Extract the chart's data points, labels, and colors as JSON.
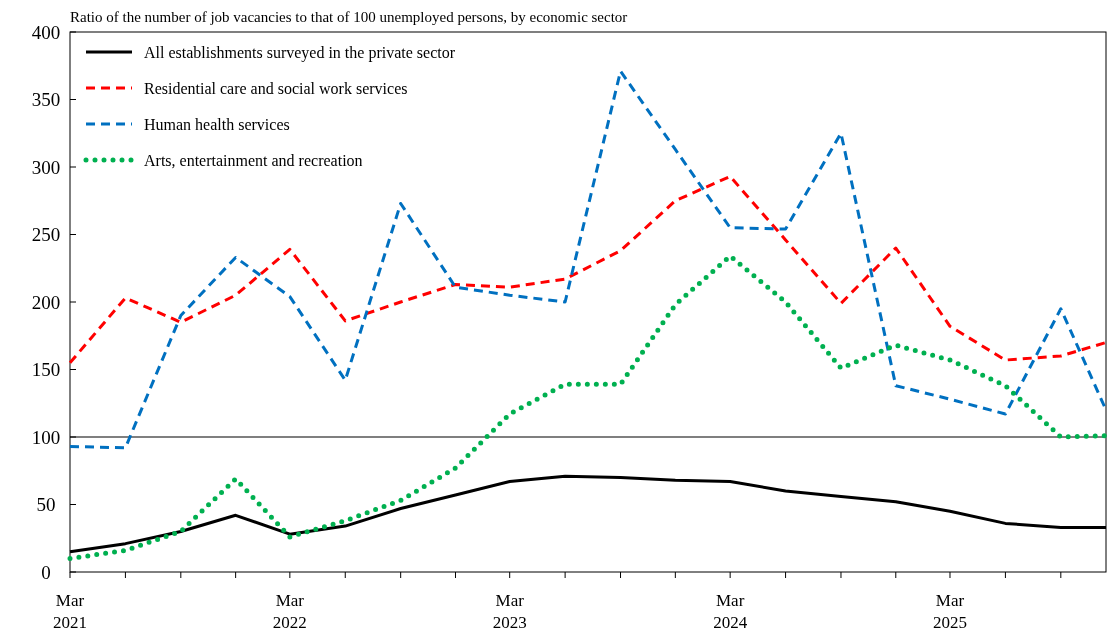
{
  "chart_data": {
    "type": "line",
    "title": "Ratio of the number of job vacancies to that of 100 unemployed persons, by economic sector",
    "x": [
      "2021-03",
      "2021-06",
      "2021-09",
      "2021-12",
      "2022-03",
      "2022-06",
      "2022-09",
      "2022-12",
      "2023-03",
      "2023-06",
      "2023-09",
      "2023-12",
      "2024-03",
      "2024-06",
      "2024-09",
      "2024-12",
      "2025-03",
      "2025-06",
      "2025-09",
      "2025-11-15"
    ],
    "series": [
      {
        "name": "All establishments surveyed in the private sector",
        "color": "#000000",
        "line_style": "solid",
        "values": [
          15,
          21,
          30,
          42,
          28,
          34,
          47,
          57,
          67,
          71,
          70,
          68,
          67,
          60,
          56,
          52,
          45,
          36,
          33,
          33
        ]
      },
      {
        "name": "Residential care and social work services",
        "color": "#ff0000",
        "line_style": "dashed",
        "values": [
          155,
          203,
          185,
          205,
          239,
          186,
          200,
          213,
          211,
          217,
          238,
          275,
          293,
          246,
          199,
          240,
          182,
          157,
          160,
          170
        ]
      },
      {
        "name": "Human health services",
        "color": "#0070c0",
        "line_style": "dashed",
        "values": [
          93,
          92,
          190,
          233,
          204,
          142,
          273,
          211,
          205,
          200,
          371,
          313,
          255,
          254,
          325,
          138,
          128,
          117,
          195,
          120
        ]
      },
      {
        "name": "Arts, entertainment and recreation",
        "color": "#00b050",
        "line_style": "dotted",
        "values": [
          10,
          16,
          30,
          69,
          26,
          38,
          53,
          77,
          117,
          139,
          139,
          198,
          234,
          200,
          151,
          168,
          157,
          138,
          100,
          101
        ]
      }
    ],
    "xlim": [
      "2021-03",
      "2025-11-15"
    ],
    "xticks": [
      {
        "value": "2021-03",
        "label": "Mar\n2021"
      },
      {
        "value": "2021-06",
        "label": null
      },
      {
        "value": "2021-09",
        "label": null
      },
      {
        "value": "2021-12",
        "label": null
      },
      {
        "value": "2022-03",
        "label": "Mar\n2022"
      },
      {
        "value": "2022-06",
        "label": null
      },
      {
        "value": "2022-09",
        "label": null
      },
      {
        "value": "2022-12",
        "label": null
      },
      {
        "value": "2023-03",
        "label": "Mar\n2023"
      },
      {
        "value": "2023-06",
        "label": null
      },
      {
        "value": "2023-09",
        "label": null
      },
      {
        "value": "2023-12",
        "label": null
      },
      {
        "value": "2024-03",
        "label": "Mar\n2024"
      },
      {
        "value": "2024-06",
        "label": null
      },
      {
        "value": "2024-09",
        "label": null
      },
      {
        "value": "2024-12",
        "label": null
      },
      {
        "value": "2025-03",
        "label": "Mar\n2025"
      },
      {
        "value": "2025-06",
        "label": null
      },
      {
        "value": "2025-09",
        "label": null
      }
    ],
    "ylim": [
      0,
      400
    ],
    "yticks": [
      0,
      50,
      100,
      150,
      200,
      250,
      300,
      350,
      400
    ],
    "ref_lines": [
      {
        "axis": "y",
        "value": 100,
        "color": "#000000",
        "line_style": "solid"
      }
    ],
    "grid": false,
    "legend": "top left"
  }
}
